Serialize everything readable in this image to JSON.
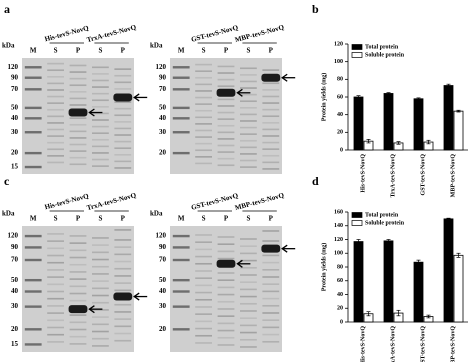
{
  "panel_letters": [
    "a",
    "b",
    "c",
    "d"
  ],
  "gels": [
    {
      "kda": "kDa",
      "ladder": [
        "120",
        "90",
        "70",
        "50",
        "40",
        "30",
        "20",
        "15"
      ],
      "lanes": [
        "M",
        "S",
        "P",
        "S",
        "P"
      ],
      "constructs": [
        "His-tevS-NovQ",
        "TrxA-tevS-NovQ"
      ]
    },
    {
      "kda": "kDa",
      "ladder": [
        "120",
        "90",
        "70",
        "50",
        "40",
        "30",
        "20"
      ],
      "lanes": [
        "M",
        "S",
        "P",
        "S",
        "P"
      ],
      "constructs": [
        "GST-tevS-NovQ",
        "MBP-tevS-NovQ"
      ]
    },
    {
      "kda": "kDa",
      "ladder": [
        "120",
        "90",
        "70",
        "50",
        "40",
        "30",
        "20",
        "15"
      ],
      "lanes": [
        "M",
        "S",
        "P",
        "S",
        "P"
      ],
      "constructs": [
        "His-tevS-NovQ",
        "TrxA-tevS-NovQ"
      ]
    },
    {
      "kda": "kDa",
      "ladder": [
        "120",
        "90",
        "70",
        "50",
        "40",
        "30",
        "20"
      ],
      "lanes": [
        "M",
        "S",
        "P",
        "S",
        "P"
      ],
      "constructs": [
        "GST-tevS-NovQ",
        "MBP-tevS-NovQ"
      ]
    }
  ],
  "chart_data": [
    {
      "type": "bar",
      "ylabel": "Protein yields (mg)",
      "categories": [
        "His-tevS-NovQ",
        "TrxA-tevS-NovQ",
        "GST-tevS-NovQ",
        "MBP-tevS-NovQ"
      ],
      "series": [
        {
          "name": "Total protein",
          "color": "#000000",
          "values": [
            60,
            64,
            58,
            73
          ],
          "errors": [
            1.5,
            1,
            1,
            1.5
          ]
        },
        {
          "name": "Soluble protein",
          "color": "#ffffff",
          "values": [
            10,
            8,
            9,
            44
          ],
          "errors": [
            2,
            1.5,
            2,
            1
          ]
        }
      ],
      "ylim": [
        0,
        120
      ],
      "yticks": [
        0,
        20,
        40,
        60,
        80,
        100,
        120
      ]
    },
    {
      "type": "bar",
      "ylabel": "Protein yields (mg)",
      "categories": [
        "His-tevS-NovQ",
        "TrxA-tevS-NovQ",
        "GST-tevS-NovQ",
        "MBP-tevS-NovQ"
      ],
      "series": [
        {
          "name": "Total protein",
          "color": "#000000",
          "values": [
            117,
            118,
            87,
            150
          ],
          "errors": [
            3,
            2,
            3,
            1
          ]
        },
        {
          "name": "Soluble protein",
          "color": "#ffffff",
          "values": [
            12,
            13,
            8,
            97
          ],
          "errors": [
            3,
            4,
            2,
            3
          ]
        }
      ],
      "ylim": [
        0,
        160
      ],
      "yticks": [
        0,
        20,
        40,
        60,
        80,
        100,
        120,
        140,
        160
      ]
    }
  ]
}
